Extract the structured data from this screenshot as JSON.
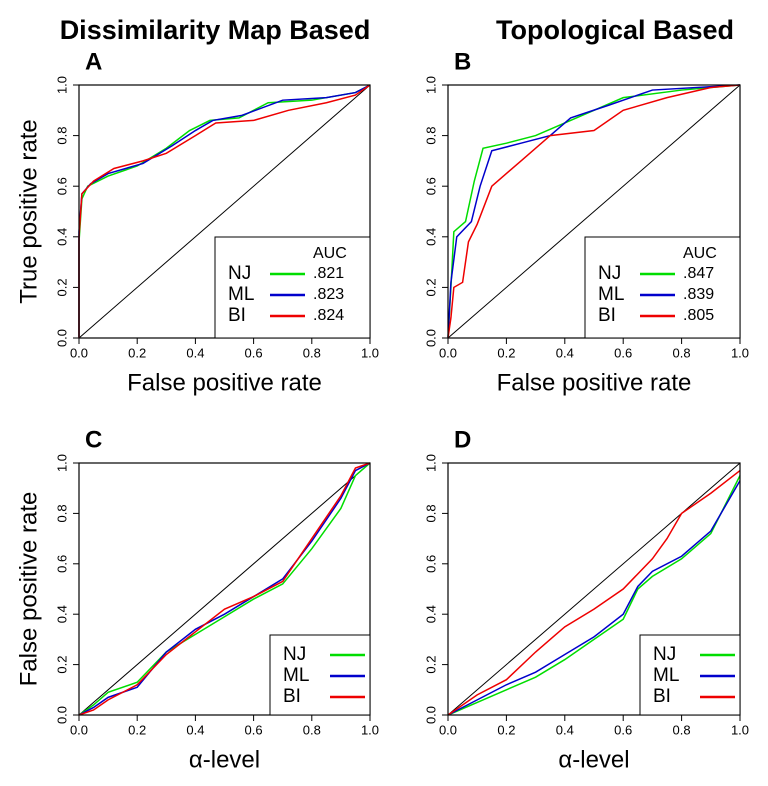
{
  "column_titles": [
    "Dissimilarity Map Based",
    "Topological Based"
  ],
  "chart_data": [
    {
      "type": "line",
      "panel": "A",
      "xlabel": "False positive rate",
      "ylabel": "True positive rate",
      "xlim": [
        0,
        1
      ],
      "ylim": [
        0,
        1
      ],
      "xticks": [
        {
          "value": 0,
          "label": "0.0"
        },
        0.2,
        0.4,
        0.6,
        0.8,
        {
          "value": 1,
          "label": "1.0"
        }
      ],
      "yticks": [
        {
          "value": 0,
          "label": "0.0"
        },
        0.2,
        0.4,
        0.6,
        0.8,
        {
          "value": 1,
          "label": "1.0"
        }
      ],
      "legend": "bottom-right",
      "legend_header": "AUC",
      "series": [
        {
          "name": "NJ",
          "color": "#00dd00",
          "auc": ".821",
          "x": [
            0,
            0,
            0.01,
            0.03,
            0.1,
            0.2,
            0.3,
            0.38,
            0.45,
            0.55,
            0.65,
            0.8,
            0.95,
            1
          ],
          "values": [
            0,
            0.38,
            0.55,
            0.6,
            0.64,
            0.68,
            0.75,
            0.82,
            0.86,
            0.87,
            0.93,
            0.94,
            0.97,
            1
          ]
        },
        {
          "name": "ML",
          "color": "#0000cc",
          "auc": ".823",
          "x": [
            0,
            0,
            0.01,
            0.04,
            0.1,
            0.22,
            0.32,
            0.4,
            0.46,
            0.56,
            0.7,
            0.85,
            0.95,
            1
          ],
          "values": [
            0,
            0.42,
            0.57,
            0.61,
            0.65,
            0.69,
            0.76,
            0.82,
            0.86,
            0.88,
            0.94,
            0.95,
            0.97,
            1
          ]
        },
        {
          "name": "BI",
          "color": "#ee0000",
          "auc": ".824",
          "x": [
            0,
            0,
            0.01,
            0.05,
            0.12,
            0.22,
            0.3,
            0.4,
            0.47,
            0.6,
            0.72,
            0.85,
            0.95,
            1
          ],
          "values": [
            0,
            0.4,
            0.57,
            0.62,
            0.67,
            0.7,
            0.73,
            0.8,
            0.85,
            0.86,
            0.9,
            0.93,
            0.96,
            1
          ]
        }
      ]
    },
    {
      "type": "line",
      "panel": "B",
      "xlabel": "False positive rate",
      "xlim": [
        0,
        1
      ],
      "ylim": [
        0,
        1
      ],
      "xticks": [
        {
          "value": 0,
          "label": "0.0"
        },
        0.2,
        0.4,
        0.6,
        0.8,
        {
          "value": 1,
          "label": "1.0"
        }
      ],
      "yticks": [
        {
          "value": 0,
          "label": "0.0"
        },
        0.2,
        0.4,
        0.6,
        0.8,
        {
          "value": 1,
          "label": "1.0"
        }
      ],
      "legend": "bottom-right",
      "legend_header": "AUC",
      "series": [
        {
          "name": "NJ",
          "color": "#00dd00",
          "auc": ".847",
          "x": [
            0,
            0.01,
            0.02,
            0.06,
            0.09,
            0.12,
            0.2,
            0.3,
            0.4,
            0.5,
            0.6,
            0.8,
            1
          ],
          "values": [
            0,
            0.2,
            0.42,
            0.46,
            0.62,
            0.75,
            0.77,
            0.8,
            0.85,
            0.9,
            0.95,
            0.98,
            1
          ]
        },
        {
          "name": "ML",
          "color": "#0000cc",
          "auc": ".839",
          "x": [
            0,
            0.01,
            0.03,
            0.08,
            0.11,
            0.15,
            0.25,
            0.35,
            0.42,
            0.55,
            0.7,
            1
          ],
          "values": [
            0,
            0.22,
            0.4,
            0.46,
            0.6,
            0.74,
            0.77,
            0.8,
            0.87,
            0.92,
            0.98,
            1
          ]
        },
        {
          "name": "BI",
          "color": "#ee0000",
          "auc": ".805",
          "x": [
            0,
            0.01,
            0.02,
            0.05,
            0.07,
            0.1,
            0.15,
            0.25,
            0.35,
            0.5,
            0.6,
            0.75,
            0.9,
            1
          ],
          "values": [
            0,
            0.08,
            0.2,
            0.22,
            0.38,
            0.45,
            0.6,
            0.7,
            0.8,
            0.82,
            0.9,
            0.95,
            0.99,
            1
          ]
        }
      ]
    },
    {
      "type": "line",
      "panel": "C",
      "xlabel": "α-level",
      "ylabel": "False positive rate",
      "xlim": [
        0,
        1
      ],
      "ylim": [
        0,
        1
      ],
      "xticks": [
        {
          "value": 0,
          "label": "0.0"
        },
        0.2,
        0.4,
        0.6,
        0.8,
        {
          "value": 1,
          "label": "1.0"
        }
      ],
      "yticks": [
        {
          "value": 0,
          "label": "0.0"
        },
        0.2,
        0.4,
        0.6,
        0.8,
        {
          "value": 1,
          "label": "1.0"
        }
      ],
      "legend": "bottom-right",
      "series": [
        {
          "name": "NJ",
          "color": "#00dd00",
          "x": [
            0,
            0.05,
            0.1,
            0.2,
            0.3,
            0.4,
            0.5,
            0.6,
            0.7,
            0.8,
            0.9,
            0.95,
            1
          ],
          "values": [
            0,
            0.04,
            0.09,
            0.13,
            0.25,
            0.32,
            0.39,
            0.46,
            0.52,
            0.66,
            0.82,
            0.95,
            1
          ]
        },
        {
          "name": "ML",
          "color": "#0000cc",
          "x": [
            0,
            0.05,
            0.1,
            0.2,
            0.3,
            0.4,
            0.5,
            0.6,
            0.7,
            0.8,
            0.9,
            0.95,
            1
          ],
          "values": [
            0,
            0.03,
            0.07,
            0.11,
            0.25,
            0.34,
            0.4,
            0.47,
            0.54,
            0.69,
            0.86,
            0.97,
            1
          ]
        },
        {
          "name": "BI",
          "color": "#ee0000",
          "x": [
            0,
            0.05,
            0.1,
            0.2,
            0.3,
            0.4,
            0.5,
            0.6,
            0.7,
            0.8,
            0.9,
            0.95,
            1
          ],
          "values": [
            0,
            0.02,
            0.06,
            0.12,
            0.24,
            0.33,
            0.42,
            0.47,
            0.53,
            0.7,
            0.87,
            0.98,
            1
          ]
        }
      ]
    },
    {
      "type": "line",
      "panel": "D",
      "xlabel": "α-level",
      "xlim": [
        0,
        1
      ],
      "ylim": [
        0,
        1
      ],
      "xticks": [
        {
          "value": 0,
          "label": "0.0"
        },
        0.2,
        0.4,
        0.6,
        0.8,
        {
          "value": 1,
          "label": "1.0"
        }
      ],
      "yticks": [
        {
          "value": 0,
          "label": "0.0"
        },
        0.2,
        0.4,
        0.6,
        0.8,
        {
          "value": 1,
          "label": "1.0"
        }
      ],
      "legend": "bottom-right",
      "series": [
        {
          "name": "NJ",
          "color": "#00dd00",
          "x": [
            0,
            0.1,
            0.2,
            0.3,
            0.4,
            0.5,
            0.6,
            0.65,
            0.7,
            0.8,
            0.9,
            1
          ],
          "values": [
            0,
            0.05,
            0.1,
            0.15,
            0.22,
            0.3,
            0.38,
            0.5,
            0.55,
            0.62,
            0.72,
            0.95
          ]
        },
        {
          "name": "ML",
          "color": "#0000cc",
          "x": [
            0,
            0.1,
            0.2,
            0.3,
            0.4,
            0.5,
            0.6,
            0.65,
            0.7,
            0.8,
            0.9,
            1
          ],
          "values": [
            0,
            0.06,
            0.12,
            0.17,
            0.24,
            0.31,
            0.4,
            0.51,
            0.57,
            0.63,
            0.73,
            0.93
          ]
        },
        {
          "name": "BI",
          "color": "#ee0000",
          "x": [
            0,
            0.1,
            0.2,
            0.3,
            0.4,
            0.5,
            0.6,
            0.7,
            0.75,
            0.8,
            0.9,
            1
          ],
          "values": [
            0,
            0.08,
            0.14,
            0.25,
            0.35,
            0.42,
            0.5,
            0.62,
            0.7,
            0.8,
            0.88,
            0.97
          ]
        }
      ]
    }
  ]
}
